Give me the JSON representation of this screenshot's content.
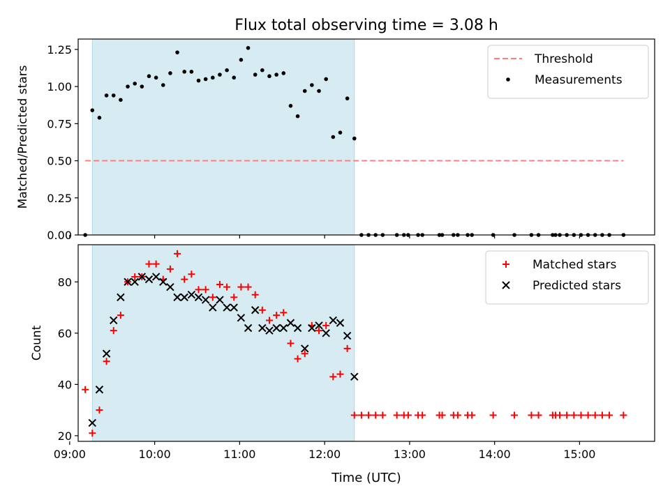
{
  "figure": {
    "title": "Flux total observing time = 3.08 h",
    "xlabel": "Time (UTC)"
  },
  "chart_data": [
    {
      "type": "scatter",
      "title": "Flux total observing time = 3.08 h",
      "xlabel": "",
      "ylabel": "Matched/Predicted stars",
      "xlim": [
        "09:06",
        "15:53"
      ],
      "ylim": [
        0,
        1.32
      ],
      "xticks": [
        "09:00",
        "10:00",
        "11:00",
        "12:00",
        "13:00",
        "14:00",
        "15:00"
      ],
      "yticks": [
        "0.00",
        "0.25",
        "0.50",
        "0.75",
        "1.00",
        "1.25"
      ],
      "shaded_span": [
        "09:16",
        "12:21"
      ],
      "shaded_color": "#add8e6",
      "legend_position": "top-right",
      "threshold": {
        "name": "Threshold",
        "y": 0.5,
        "x_range": [
          "09:11",
          "15:31"
        ],
        "color": "#ff7f7f",
        "style": "dashed"
      },
      "series": [
        {
          "name": "Measurements",
          "marker": "dot",
          "color": "#000000",
          "x": [
            "09:11",
            "09:16",
            "09:21",
            "09:26",
            "09:31",
            "09:36",
            "09:41",
            "09:46",
            "09:51",
            "09:56",
            "10:01",
            "10:06",
            "10:11",
            "10:16",
            "10:21",
            "10:26",
            "10:31",
            "10:36",
            "10:41",
            "10:46",
            "10:51",
            "10:56",
            "11:01",
            "11:06",
            "11:11",
            "11:16",
            "11:21",
            "11:26",
            "11:31",
            "11:36",
            "11:41",
            "11:46",
            "11:51",
            "11:56",
            "12:01",
            "12:06",
            "12:11",
            "12:16",
            "12:21",
            "12:26",
            "12:31",
            "12:36",
            "12:41",
            "12:51",
            "12:56",
            "12:59",
            "13:06",
            "13:09",
            "13:21",
            "13:23",
            "13:31",
            "13:34",
            "13:41",
            "13:44",
            "13:59",
            "14:14",
            "14:26",
            "14:31",
            "14:41",
            "14:43",
            "14:46",
            "14:51",
            "14:56",
            "15:01",
            "15:06",
            "15:11",
            "15:16",
            "15:21",
            "15:31"
          ],
          "y": [
            0,
            0.84,
            0.79,
            0.94,
            0.94,
            0.91,
            1.0,
            1.02,
            1.0,
            1.07,
            1.06,
            1.01,
            1.09,
            1.23,
            1.1,
            1.1,
            1.04,
            1.05,
            1.06,
            1.08,
            1.11,
            1.06,
            1.18,
            1.26,
            1.08,
            1.11,
            1.07,
            1.08,
            1.09,
            0.87,
            0.8,
            0.97,
            1.01,
            0.97,
            1.05,
            0.66,
            0.69,
            0.92,
            0.65,
            0,
            0,
            0,
            0,
            0,
            0,
            0,
            0,
            0,
            0,
            0,
            0,
            0,
            0,
            0,
            0,
            0,
            0,
            0,
            0,
            0,
            0,
            0,
            0,
            0,
            0,
            0,
            0,
            0,
            0
          ]
        }
      ]
    },
    {
      "type": "scatter",
      "xlabel": "Time (UTC)",
      "ylabel": "Count",
      "xlim": [
        "09:06",
        "15:53"
      ],
      "ylim": [
        17.8,
        94.5
      ],
      "xticks": [
        "09:00",
        "10:00",
        "11:00",
        "12:00",
        "13:00",
        "14:00",
        "15:00"
      ],
      "yticks": [
        "20",
        "40",
        "60",
        "80"
      ],
      "shaded_span": [
        "09:16",
        "12:21"
      ],
      "shaded_color": "#add8e6",
      "legend_position": "top-right",
      "series": [
        {
          "name": "Matched stars",
          "marker": "plus",
          "color": "#ff0000",
          "x": [
            "09:11",
            "09:16",
            "09:21",
            "09:26",
            "09:31",
            "09:36",
            "09:41",
            "09:46",
            "09:51",
            "09:56",
            "10:01",
            "10:06",
            "10:11",
            "10:16",
            "10:21",
            "10:26",
            "10:31",
            "10:36",
            "10:41",
            "10:46",
            "10:51",
            "10:56",
            "11:01",
            "11:06",
            "11:11",
            "11:16",
            "11:21",
            "11:26",
            "11:31",
            "11:36",
            "11:41",
            "11:46",
            "11:51",
            "11:56",
            "12:01",
            "12:06",
            "12:11",
            "12:16",
            "12:21",
            "12:26",
            "12:31",
            "12:36",
            "12:41",
            "12:51",
            "12:56",
            "12:59",
            "13:06",
            "13:09",
            "13:21",
            "13:23",
            "13:31",
            "13:34",
            "13:41",
            "13:44",
            "13:59",
            "14:14",
            "14:26",
            "14:31",
            "14:41",
            "14:43",
            "14:46",
            "14:51",
            "14:56",
            "15:01",
            "15:06",
            "15:11",
            "15:16",
            "15:21",
            "15:31"
          ],
          "y": [
            38,
            21,
            30,
            49,
            61,
            67,
            80,
            82,
            82,
            87,
            87,
            81,
            85,
            91,
            81,
            83,
            77,
            77,
            74,
            79,
            78,
            74,
            78,
            78,
            75,
            69,
            65,
            67,
            68,
            56,
            50,
            52,
            63,
            61,
            63,
            43,
            44,
            54,
            28,
            28,
            28,
            28,
            28,
            28,
            28,
            28,
            28,
            28,
            28,
            28,
            28,
            28,
            28,
            28,
            28,
            28,
            28,
            28,
            28,
            28,
            28,
            28,
            28,
            28,
            28,
            28,
            28,
            28,
            28
          ]
        },
        {
          "name": "Predicted stars",
          "marker": "x",
          "color": "#000000",
          "x": [
            "09:16",
            "09:21",
            "09:26",
            "09:31",
            "09:36",
            "09:41",
            "09:46",
            "09:51",
            "09:56",
            "10:01",
            "10:06",
            "10:11",
            "10:16",
            "10:21",
            "10:26",
            "10:31",
            "10:36",
            "10:41",
            "10:46",
            "10:51",
            "10:56",
            "11:01",
            "11:06",
            "11:11",
            "11:16",
            "11:21",
            "11:26",
            "11:31",
            "11:36",
            "11:41",
            "11:46",
            "11:51",
            "11:56",
            "12:01",
            "12:06",
            "12:11",
            "12:16",
            "12:21"
          ],
          "y": [
            25,
            38,
            52,
            65,
            74,
            80,
            80,
            82,
            81,
            82,
            80,
            78,
            74,
            74,
            75,
            74,
            73,
            70,
            73,
            70,
            70,
            66,
            62,
            69,
            62,
            61,
            62,
            62,
            64,
            62,
            54,
            62,
            63,
            60,
            65,
            64,
            59,
            43
          ]
        }
      ]
    }
  ]
}
